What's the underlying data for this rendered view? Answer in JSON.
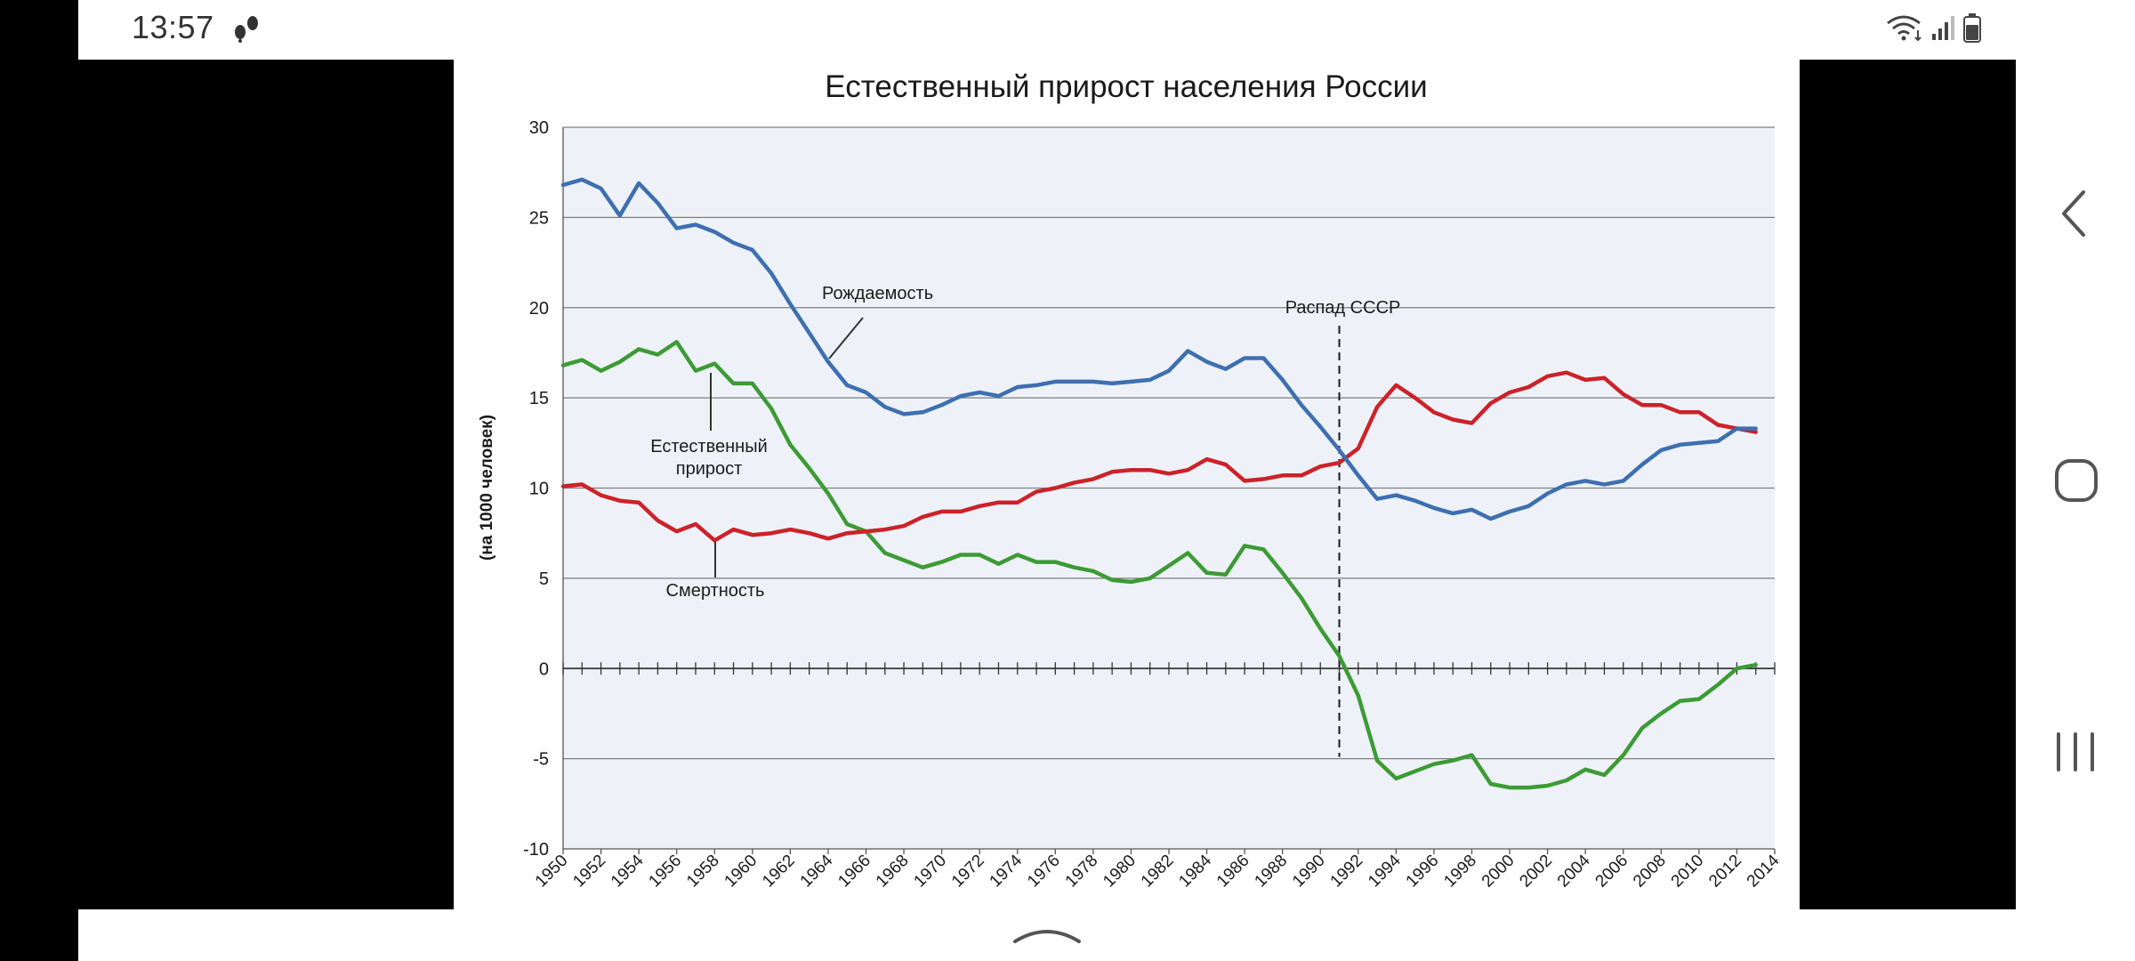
{
  "status_bar": {
    "time": "13:57",
    "icons": [
      "footsteps-icon",
      "wifi-data-icon",
      "signal-bars-icon",
      "battery-icon"
    ]
  },
  "navigation": {
    "back": "chevron-left-icon",
    "home": "rounded-square-icon",
    "recents": "three-bars-icon",
    "bottom": "chevron-up-icon"
  },
  "colors": {
    "births": "#3e6fb0",
    "deaths": "#cc2229",
    "natural": "#3d9b35",
    "plot_bg": "#eef2f8",
    "grid": "#7f7f7f"
  },
  "chart_data": {
    "type": "line",
    "title": "Естественный прирост населения России",
    "ylabel": "(на 1000 человек)",
    "xlabel": "",
    "ylim": [
      -10,
      30
    ],
    "xlim": [
      1950,
      2014
    ],
    "yticks": [
      30,
      25,
      20,
      15,
      10,
      5,
      0,
      -5,
      -10
    ],
    "xticks": [
      1950,
      1952,
      1954,
      1956,
      1958,
      1960,
      1962,
      1964,
      1966,
      1968,
      1970,
      1972,
      1974,
      1976,
      1978,
      1980,
      1982,
      1984,
      1986,
      1988,
      1990,
      1992,
      1994,
      1996,
      1998,
      2000,
      2002,
      2004,
      2006,
      2008,
      2010,
      2012,
      2014
    ],
    "grid": true,
    "event_line": {
      "x": 1991,
      "label": "Распад СССР"
    },
    "series": [
      {
        "name": "Рождаемость",
        "color": "#3e6fb0",
        "x": [
          1950,
          1951,
          1952,
          1953,
          1954,
          1955,
          1956,
          1957,
          1958,
          1959,
          1960,
          1961,
          1962,
          1963,
          1964,
          1965,
          1966,
          1967,
          1968,
          1969,
          1970,
          1971,
          1972,
          1973,
          1974,
          1975,
          1976,
          1977,
          1978,
          1979,
          1980,
          1981,
          1982,
          1983,
          1984,
          1985,
          1986,
          1987,
          1988,
          1989,
          1990,
          1991,
          1992,
          1993,
          1994,
          1995,
          1996,
          1997,
          1998,
          1999,
          2000,
          2001,
          2002,
          2003,
          2004,
          2005,
          2006,
          2007,
          2008,
          2009,
          2010,
          2011,
          2012,
          2013
        ],
        "values": [
          26.8,
          27.1,
          26.6,
          25.1,
          26.9,
          25.8,
          24.4,
          24.6,
          24.2,
          23.6,
          23.2,
          21.9,
          20.2,
          18.6,
          17.0,
          15.7,
          15.3,
          14.5,
          14.1,
          14.2,
          14.6,
          15.1,
          15.3,
          15.1,
          15.6,
          15.7,
          15.9,
          15.9,
          15.9,
          15.8,
          15.9,
          16.0,
          16.5,
          17.6,
          17.0,
          16.6,
          17.2,
          17.2,
          16.0,
          14.6,
          13.4,
          12.1,
          10.7,
          9.4,
          9.6,
          9.3,
          8.9,
          8.6,
          8.8,
          8.3,
          8.7,
          9.0,
          9.7,
          10.2,
          10.4,
          10.2,
          10.4,
          11.3,
          12.1,
          12.4,
          12.5,
          12.6,
          13.3,
          13.3
        ]
      },
      {
        "name": "Смертность",
        "color": "#cc2229",
        "x": [
          1950,
          1951,
          1952,
          1953,
          1954,
          1955,
          1956,
          1957,
          1958,
          1959,
          1960,
          1961,
          1962,
          1963,
          1964,
          1965,
          1966,
          1967,
          1968,
          1969,
          1970,
          1971,
          1972,
          1973,
          1974,
          1975,
          1976,
          1977,
          1978,
          1979,
          1980,
          1981,
          1982,
          1983,
          1984,
          1985,
          1986,
          1987,
          1988,
          1989,
          1990,
          1991,
          1992,
          1993,
          1994,
          1995,
          1996,
          1997,
          1998,
          1999,
          2000,
          2001,
          2002,
          2003,
          2004,
          2005,
          2006,
          2007,
          2008,
          2009,
          2010,
          2011,
          2012,
          2013
        ],
        "values": [
          10.1,
          10.2,
          9.6,
          9.3,
          9.2,
          8.2,
          7.6,
          8.0,
          7.1,
          7.7,
          7.4,
          7.5,
          7.7,
          7.5,
          7.2,
          7.5,
          7.6,
          7.7,
          7.9,
          8.4,
          8.7,
          8.7,
          9.0,
          9.2,
          9.2,
          9.8,
          10.0,
          10.3,
          10.5,
          10.9,
          11.0,
          11.0,
          10.8,
          11.0,
          11.6,
          11.3,
          10.4,
          10.5,
          10.7,
          10.7,
          11.2,
          11.4,
          12.2,
          14.5,
          15.7,
          15.0,
          14.2,
          13.8,
          13.6,
          14.7,
          15.3,
          15.6,
          16.2,
          16.4,
          16.0,
          16.1,
          15.2,
          14.6,
          14.6,
          14.2,
          14.2,
          13.5,
          13.3,
          13.1
        ]
      },
      {
        "name": "Естественный прирост",
        "color": "#3d9b35",
        "x": [
          1950,
          1951,
          1952,
          1953,
          1954,
          1955,
          1956,
          1957,
          1958,
          1959,
          1960,
          1961,
          1962,
          1963,
          1964,
          1965,
          1966,
          1967,
          1968,
          1969,
          1970,
          1971,
          1972,
          1973,
          1974,
          1975,
          1976,
          1977,
          1978,
          1979,
          1980,
          1981,
          1982,
          1983,
          1984,
          1985,
          1986,
          1987,
          1988,
          1989,
          1990,
          1991,
          1992,
          1993,
          1994,
          1995,
          1996,
          1997,
          1998,
          1999,
          2000,
          2001,
          2002,
          2003,
          2004,
          2005,
          2006,
          2007,
          2008,
          2009,
          2010,
          2011,
          2012,
          2013
        ],
        "values": [
          16.8,
          17.1,
          16.5,
          17.0,
          17.7,
          17.4,
          18.1,
          16.5,
          16.9,
          15.8,
          15.8,
          14.4,
          12.4,
          11.1,
          9.7,
          8.0,
          7.6,
          6.4,
          6.0,
          5.6,
          5.9,
          6.3,
          6.3,
          5.8,
          6.3,
          5.9,
          5.9,
          5.6,
          5.4,
          4.9,
          4.8,
          5.0,
          5.7,
          6.4,
          5.3,
          5.2,
          6.8,
          6.6,
          5.3,
          3.9,
          2.2,
          0.7,
          -1.5,
          -5.1,
          -6.1,
          -5.7,
          -5.3,
          -5.1,
          -4.8,
          -6.4,
          -6.6,
          -6.6,
          -6.5,
          -6.2,
          -5.6,
          -5.9,
          -4.8,
          -3.3,
          -2.5,
          -1.8,
          -1.7,
          -0.9,
          0.0,
          0.2
        ]
      }
    ],
    "annotations": [
      {
        "text": "Рождаемость",
        "series": "Рождаемость"
      },
      {
        "text": "Естественный прирост",
        "series": "Естественный прирост",
        "lines": [
          "Естественный",
          "прирост"
        ]
      },
      {
        "text": "Смертность",
        "series": "Смертность"
      }
    ]
  }
}
